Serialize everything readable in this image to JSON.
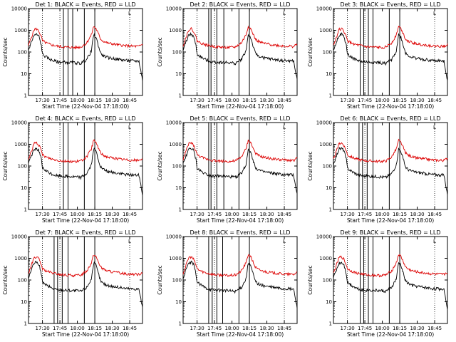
{
  "figure": {
    "xlabel": "Start Time (22-Nov-04 17:18:00)",
    "ylabel": "Counts/sec",
    "line_colors": {
      "events": "#000000",
      "lld": "#dd0000"
    }
  },
  "chart_data": [
    {
      "type": "line",
      "title": "Det 1: BLACK = Events, RED = LLD",
      "xlabel": "Start Time (22-Nov-04 17:18:00)",
      "ylabel": "Counts/sec",
      "yscale": "log",
      "ylim": [
        1,
        10000
      ],
      "xlim_minutes": [
        0,
        98
      ],
      "x_ticks": [
        "17:30",
        "17:45",
        "18:00",
        "18:15",
        "18:30",
        "18:45"
      ],
      "y_ticks": [
        "1",
        "10",
        "100",
        "1000",
        "10000"
      ],
      "legend_marker": "L",
      "dotted_lines": [
        "17:30",
        "17:45",
        "18:45"
      ],
      "solid_lines": [
        "17:48",
        "17:52",
        "17:56",
        "18:06",
        "18:15"
      ]
    },
    {
      "type": "line",
      "title": "Det 2: BLACK = Events, RED = LLD",
      "xlabel": "Start Time (22-Nov-04 17:18:00)",
      "ylabel": "Counts/sec",
      "yscale": "log",
      "ylim": [
        1,
        10000
      ],
      "xlim_minutes": [
        0,
        98
      ],
      "x_ticks": [
        "17:30",
        "17:45",
        "18:00",
        "18:15",
        "18:30",
        "18:45"
      ],
      "y_ticks": [
        "1",
        "10",
        "100",
        "1000",
        "10000"
      ],
      "legend_marker": "L",
      "dotted_lines": [
        "17:30",
        "17:45",
        "18:45"
      ],
      "solid_lines": [
        "17:40",
        "17:42",
        "17:47",
        "17:53",
        "18:06",
        "18:15"
      ]
    },
    {
      "type": "line",
      "title": "Det 3: BLACK = Events, RED = LLD",
      "xlabel": "Start Time (22-Nov-04 17:18:00)",
      "ylabel": "Counts/sec",
      "yscale": "log",
      "ylim": [
        1,
        10000
      ],
      "xlim_minutes": [
        0,
        98
      ],
      "x_ticks": [
        "17:30",
        "17:45",
        "18:00",
        "18:15",
        "18:30",
        "18:45"
      ],
      "y_ticks": [
        "1",
        "10",
        "100",
        "1000",
        "10000"
      ],
      "legend_marker": "L",
      "dotted_lines": [
        "17:30",
        "17:45",
        "18:45"
      ],
      "solid_lines": [
        "17:41",
        "17:44",
        "17:48",
        "17:52",
        "18:06",
        "18:15"
      ]
    },
    {
      "type": "line",
      "title": "Det 4: BLACK = Events, RED = LLD",
      "xlabel": "Start Time (22-Nov-04 17:18:00)",
      "ylabel": "Counts/sec",
      "yscale": "log",
      "ylim": [
        1,
        10000
      ],
      "xlim_minutes": [
        0,
        98
      ],
      "x_ticks": [
        "17:30",
        "17:45",
        "18:00",
        "18:15",
        "18:30",
        "18:45"
      ],
      "y_ticks": [
        "1",
        "10",
        "100",
        "1000",
        "10000"
      ],
      "legend_marker": "L",
      "dotted_lines": [
        "17:30",
        "17:45",
        "18:45"
      ],
      "solid_lines": [
        "17:48",
        "17:52",
        "18:06",
        "18:15"
      ]
    },
    {
      "type": "line",
      "title": "Det 5: BLACK = Events, RED = LLD",
      "xlabel": "Start Time (22-Nov-04 17:18:00)",
      "ylabel": "Counts/sec",
      "yscale": "log",
      "ylim": [
        1,
        10000
      ],
      "xlim_minutes": [
        0,
        98
      ],
      "x_ticks": [
        "17:30",
        "17:45",
        "18:00",
        "18:15",
        "18:30",
        "18:45"
      ],
      "y_ticks": [
        "1",
        "10",
        "100",
        "1000",
        "10000"
      ],
      "legend_marker": "L",
      "dotted_lines": [
        "17:30",
        "17:45",
        "18:45"
      ],
      "solid_lines": [
        "17:40",
        "17:42",
        "17:47",
        "17:53",
        "18:06",
        "18:15"
      ]
    },
    {
      "type": "line",
      "title": "Det 6: BLACK = Events, RED = LLD",
      "xlabel": "Start Time (22-Nov-04 17:18:00)",
      "ylabel": "Counts/sec",
      "yscale": "log",
      "ylim": [
        1,
        10000
      ],
      "xlim_minutes": [
        0,
        98
      ],
      "x_ticks": [
        "17:30",
        "17:45",
        "18:00",
        "18:15",
        "18:30",
        "18:45"
      ],
      "y_ticks": [
        "1",
        "10",
        "100",
        "1000",
        "10000"
      ],
      "legend_marker": "L",
      "dotted_lines": [
        "17:30",
        "17:45",
        "18:45"
      ],
      "solid_lines": [
        "17:40",
        "17:43",
        "17:47",
        "17:52",
        "18:06",
        "18:15"
      ]
    },
    {
      "type": "line",
      "title": "Det 7: BLACK = Events, RED = LLD",
      "xlabel": "Start Time (22-Nov-04 17:18:00)",
      "ylabel": "Counts/sec",
      "yscale": "log",
      "ylim": [
        1,
        10000
      ],
      "xlim_minutes": [
        0,
        98
      ],
      "x_ticks": [
        "17:30",
        "17:45",
        "18:00",
        "18:15",
        "18:30",
        "18:45"
      ],
      "y_ticks": [
        "1",
        "10",
        "100",
        "1000",
        "10000"
      ],
      "legend_marker": "L",
      "dotted_lines": [
        "17:30",
        "17:45",
        "18:45"
      ],
      "solid_lines": [
        "17:40",
        "17:43",
        "17:47",
        "17:52",
        "18:06",
        "18:15"
      ]
    },
    {
      "type": "line",
      "title": "Det 8: BLACK = Events, RED = LLD",
      "xlabel": "Start Time (22-Nov-04 17:18:00)",
      "ylabel": "Counts/sec",
      "yscale": "log",
      "ylim": [
        1,
        10000
      ],
      "xlim_minutes": [
        0,
        98
      ],
      "x_ticks": [
        "17:30",
        "17:45",
        "18:00",
        "18:15",
        "18:30",
        "18:45"
      ],
      "y_ticks": [
        "1",
        "10",
        "100",
        "1000",
        "10000"
      ],
      "legend_marker": "L",
      "dotted_lines": [
        "17:30",
        "17:45",
        "18:45"
      ],
      "solid_lines": [
        "17:40",
        "17:43",
        "17:47",
        "17:52",
        "18:06",
        "18:15"
      ]
    },
    {
      "type": "line",
      "title": "Det 9: BLACK = Events, RED = LLD",
      "xlabel": "Start Time (22-Nov-04 17:18:00)",
      "ylabel": "Counts/sec",
      "yscale": "log",
      "ylim": [
        1,
        10000
      ],
      "xlim_minutes": [
        0,
        98
      ],
      "x_ticks": [
        "17:30",
        "17:45",
        "18:00",
        "18:15",
        "18:30",
        "18:45"
      ],
      "y_ticks": [
        "1",
        "10",
        "100",
        "1000",
        "10000"
      ],
      "legend_marker": "L",
      "dotted_lines": [
        "17:30",
        "17:45",
        "18:45"
      ],
      "solid_lines": [
        "17:41",
        "17:44",
        "17:48",
        "17:52",
        "18:06",
        "18:15"
      ]
    }
  ],
  "series_profile": {
    "x_minutes": [
      0,
      2,
      4,
      5,
      7,
      9,
      11,
      12,
      14,
      16,
      20,
      25,
      30,
      35,
      40,
      45,
      50,
      54,
      56,
      58,
      60,
      62,
      64,
      68,
      75,
      85,
      95,
      98
    ],
    "events": [
      120,
      250,
      460,
      600,
      640,
      520,
      200,
      80,
      65,
      55,
      42,
      35,
      34,
      33,
      32,
      30,
      45,
      110,
      600,
      480,
      200,
      90,
      70,
      55,
      48,
      40,
      38,
      5
    ],
    "lld": [
      200,
      400,
      800,
      1100,
      1150,
      900,
      500,
      330,
      280,
      250,
      210,
      185,
      170,
      165,
      160,
      170,
      260,
      600,
      1500,
      1200,
      700,
      400,
      320,
      260,
      220,
      190,
      180,
      230
    ]
  }
}
